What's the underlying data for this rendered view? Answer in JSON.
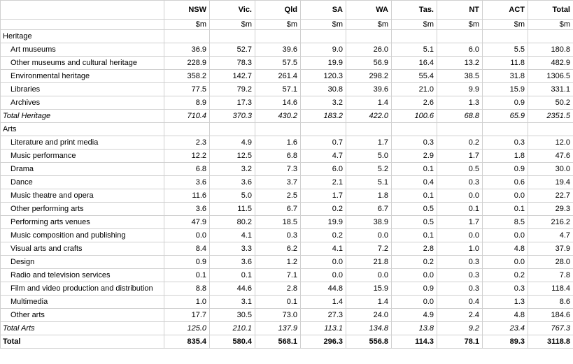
{
  "meta": {
    "description_of_visible_content": "Spreadsheet table of Heritage and Arts funding in millions of dollars by Australian state and territory"
  },
  "colors": {
    "background": "#ffffff",
    "gridline": "#d0d0d0",
    "text": "#000000"
  },
  "chart_data": {
    "type": "table",
    "columns": [
      "NSW",
      "Vic.",
      "Qld",
      "SA",
      "WA",
      "Tas.",
      "NT",
      "ACT",
      "Total"
    ],
    "unit_label": "$m",
    "rows": [
      {
        "label": "Heritage",
        "style": "section",
        "values": []
      },
      {
        "label": "Art museums",
        "style": "item",
        "values": [
          "36.9",
          "52.7",
          "39.6",
          "9.0",
          "26.0",
          "5.1",
          "6.0",
          "5.5",
          "180.8"
        ]
      },
      {
        "label": "Other museums and cultural heritage",
        "style": "item",
        "values": [
          "228.9",
          "78.3",
          "57.5",
          "19.9",
          "56.9",
          "16.4",
          "13.2",
          "11.8",
          "482.9"
        ]
      },
      {
        "label": "Environmental heritage",
        "style": "item",
        "values": [
          "358.2",
          "142.7",
          "261.4",
          "120.3",
          "298.2",
          "55.4",
          "38.5",
          "31.8",
          "1306.5"
        ]
      },
      {
        "label": "Libraries",
        "style": "item",
        "values": [
          "77.5",
          "79.2",
          "57.1",
          "30.8",
          "39.6",
          "21.0",
          "9.9",
          "15.9",
          "331.1"
        ]
      },
      {
        "label": "Archives",
        "style": "item",
        "values": [
          "8.9",
          "17.3",
          "14.6",
          "3.2",
          "1.4",
          "2.6",
          "1.3",
          "0.9",
          "50.2"
        ]
      },
      {
        "label": "Total Heritage",
        "style": "subtotal",
        "values": [
          "710.4",
          "370.3",
          "430.2",
          "183.2",
          "422.0",
          "100.6",
          "68.8",
          "65.9",
          "2351.5"
        ]
      },
      {
        "label": "Arts",
        "style": "section",
        "values": []
      },
      {
        "label": "Literature and print media",
        "style": "item",
        "values": [
          "2.3",
          "4.9",
          "1.6",
          "0.7",
          "1.7",
          "0.3",
          "0.2",
          "0.3",
          "12.0"
        ]
      },
      {
        "label": "Music performance",
        "style": "item",
        "values": [
          "12.2",
          "12.5",
          "6.8",
          "4.7",
          "5.0",
          "2.9",
          "1.7",
          "1.8",
          "47.6"
        ]
      },
      {
        "label": "Drama",
        "style": "item",
        "values": [
          "6.8",
          "3.2",
          "7.3",
          "6.0",
          "5.2",
          "0.1",
          "0.5",
          "0.9",
          "30.0"
        ]
      },
      {
        "label": "Dance",
        "style": "item",
        "values": [
          "3.6",
          "3.6",
          "3.7",
          "2.1",
          "5.1",
          "0.4",
          "0.3",
          "0.6",
          "19.4"
        ]
      },
      {
        "label": "Music theatre and opera",
        "style": "item",
        "values": [
          "11.6",
          "5.0",
          "2.5",
          "1.7",
          "1.8",
          "0.1",
          "0.0",
          "0.0",
          "22.7"
        ]
      },
      {
        "label": "Other performing arts",
        "style": "item",
        "values": [
          "3.6",
          "11.5",
          "6.7",
          "0.2",
          "6.7",
          "0.5",
          "0.1",
          "0.1",
          "29.3"
        ]
      },
      {
        "label": "Performing arts venues",
        "style": "item",
        "values": [
          "47.9",
          "80.2",
          "18.5",
          "19.9",
          "38.9",
          "0.5",
          "1.7",
          "8.5",
          "216.2"
        ]
      },
      {
        "label": "Music composition and publishing",
        "style": "item",
        "values": [
          "0.0",
          "4.1",
          "0.3",
          "0.2",
          "0.0",
          "0.1",
          "0.0",
          "0.0",
          "4.7"
        ]
      },
      {
        "label": "Visual arts and crafts",
        "style": "item",
        "values": [
          "8.4",
          "3.3",
          "6.2",
          "4.1",
          "7.2",
          "2.8",
          "1.0",
          "4.8",
          "37.9"
        ]
      },
      {
        "label": "Design",
        "style": "item",
        "values": [
          "0.9",
          "3.6",
          "1.2",
          "0.0",
          "21.8",
          "0.2",
          "0.3",
          "0.0",
          "28.0"
        ]
      },
      {
        "label": "Radio and television services",
        "style": "item",
        "values": [
          "0.1",
          "0.1",
          "7.1",
          "0.0",
          "0.0",
          "0.0",
          "0.3",
          "0.2",
          "7.8"
        ]
      },
      {
        "label": "Film and video production and distribution",
        "style": "item",
        "values": [
          "8.8",
          "44.6",
          "2.8",
          "44.8",
          "15.9",
          "0.9",
          "0.3",
          "0.3",
          "118.4"
        ]
      },
      {
        "label": "Multimedia",
        "style": "item",
        "values": [
          "1.0",
          "3.1",
          "0.1",
          "1.4",
          "1.4",
          "0.0",
          "0.4",
          "1.3",
          "8.6"
        ]
      },
      {
        "label": "Other arts",
        "style": "item",
        "values": [
          "17.7",
          "30.5",
          "73.0",
          "27.3",
          "24.0",
          "4.9",
          "2.4",
          "4.8",
          "184.6"
        ]
      },
      {
        "label": "Total Arts",
        "style": "subtotal",
        "values": [
          "125.0",
          "210.1",
          "137.9",
          "113.1",
          "134.8",
          "13.8",
          "9.2",
          "23.4",
          "767.3"
        ]
      },
      {
        "label": "Total",
        "style": "grandtotal",
        "values": [
          "835.4",
          "580.4",
          "568.1",
          "296.3",
          "556.8",
          "114.3",
          "78.1",
          "89.3",
          "3118.8"
        ]
      }
    ]
  }
}
